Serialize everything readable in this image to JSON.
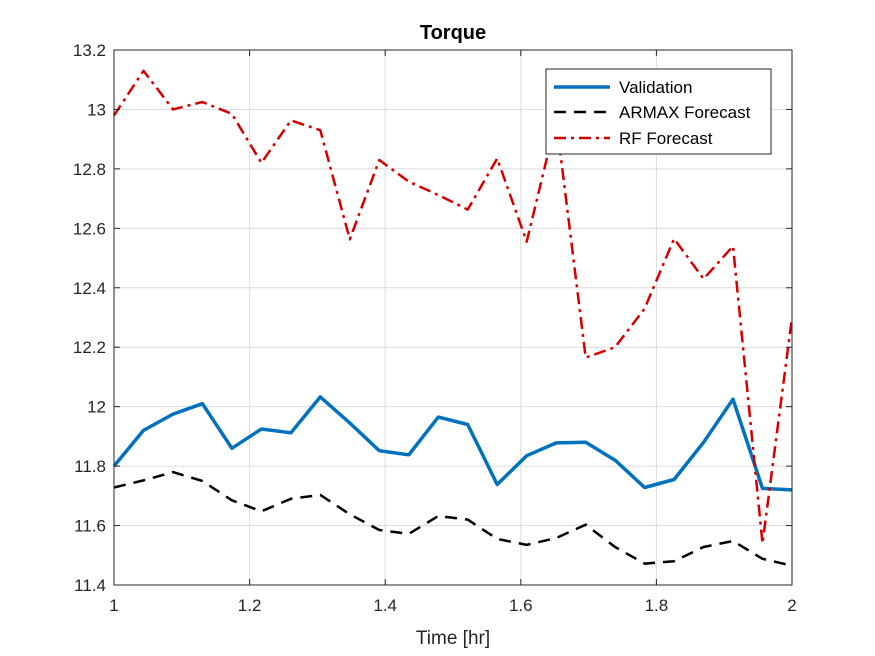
{
  "chart_data": {
    "type": "line",
    "title": "Torque",
    "xlabel": "Time [hr]",
    "ylabel": "",
    "xlim": [
      1,
      2
    ],
    "ylim": [
      11.4,
      13.2
    ],
    "x_ticks": [
      "1",
      "1.2",
      "1.4",
      "1.6",
      "1.8",
      "2"
    ],
    "y_ticks": [
      "11.4",
      "11.6",
      "11.8",
      "12",
      "12.2",
      "12.4",
      "12.6",
      "12.8",
      "13",
      "13.2"
    ],
    "grid": true,
    "legend_position": "top-right",
    "x": [
      1.0,
      1.0435,
      1.087,
      1.1304,
      1.1739,
      1.2174,
      1.2609,
      1.3043,
      1.3478,
      1.3913,
      1.4348,
      1.4783,
      1.5217,
      1.5652,
      1.6087,
      1.6522,
      1.6957,
      1.7391,
      1.7826,
      1.8261,
      1.8696,
      1.913,
      1.9565,
      2.0
    ],
    "series": [
      {
        "name": "Validation",
        "color": "#0072BD",
        "style": "solid",
        "values": [
          11.8,
          11.92,
          11.975,
          12.01,
          11.86,
          11.925,
          11.912,
          12.033,
          11.945,
          11.852,
          11.838,
          11.965,
          11.94,
          11.738,
          11.835,
          11.878,
          11.88,
          11.82,
          11.728,
          11.755,
          11.88,
          12.025,
          11.725,
          11.72
        ]
      },
      {
        "name": "ARMAX Forecast",
        "color": "#000000",
        "style": "dashed",
        "values": [
          11.728,
          11.752,
          11.78,
          11.75,
          11.685,
          11.648,
          11.69,
          11.703,
          11.638,
          11.585,
          11.572,
          11.632,
          11.62,
          11.555,
          11.535,
          11.558,
          11.603,
          11.528,
          11.472,
          11.48,
          11.528,
          11.548,
          11.488,
          11.465
        ]
      },
      {
        "name": "RF Forecast",
        "color": "#D40000",
        "style": "dashdot",
        "values": [
          12.98,
          13.13,
          13.0,
          13.025,
          12.985,
          12.82,
          12.963,
          12.93,
          12.563,
          12.83,
          12.757,
          12.712,
          12.663,
          12.835,
          12.555,
          12.965,
          12.165,
          12.2,
          12.33,
          12.565,
          12.43,
          12.54,
          11.54,
          12.3
        ]
      }
    ]
  }
}
